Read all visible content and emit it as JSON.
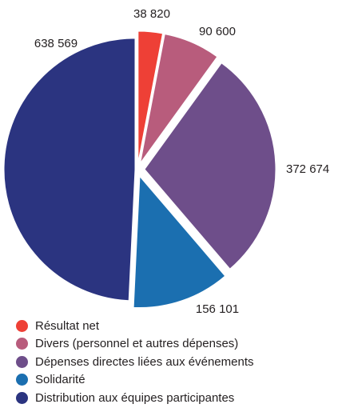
{
  "chart_data": {
    "type": "pie",
    "title": "",
    "start_angle_deg": 0,
    "direction": "clockwise",
    "exploded": true,
    "slices": [
      {
        "label": "Résultat net",
        "value": 38820,
        "value_label": "38 820",
        "color": "#ee4036"
      },
      {
        "label": "Divers (personnel et autres dépenses)",
        "value": 90600,
        "value_label": "90 600",
        "color": "#b85c7c"
      },
      {
        "label": "Dépenses directes liées aux événements",
        "value": 372674,
        "value_label": "372 674",
        "color": "#6e4e8a"
      },
      {
        "label": "Solidarité",
        "value": 156101,
        "value_label": "156 101",
        "color": "#1b6fb0"
      },
      {
        "label": "Distribution aux équipes participantes",
        "value": 638569,
        "value_label": "638 569",
        "color": "#2b3480"
      }
    ],
    "legend_position": "bottom-left"
  }
}
